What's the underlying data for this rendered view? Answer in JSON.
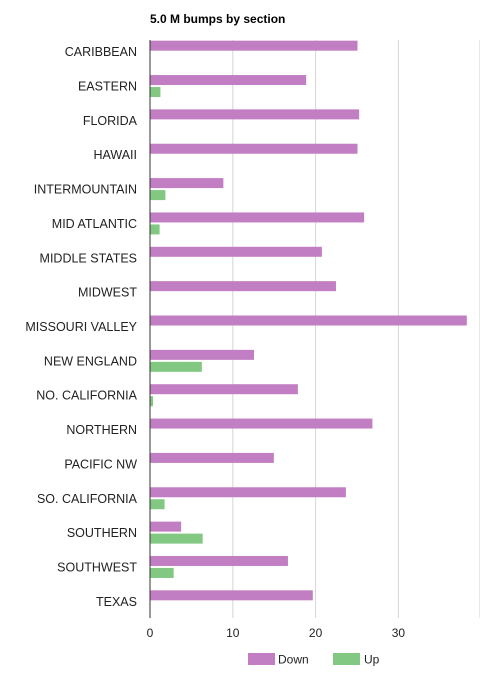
{
  "chart_data": {
    "type": "bar",
    "orientation": "horizontal",
    "title": "5.0 M bumps by section",
    "categories": [
      "CARIBBEAN",
      "EASTERN",
      "FLORIDA",
      "HAWAII",
      "INTERMOUNTAIN",
      "MID ATLANTIC",
      "MIDDLE STATES",
      "MIDWEST",
      "MISSOURI VALLEY",
      "NEW ENGLAND",
      "NO. CALIFORNIA",
      "NORTHERN",
      "PACIFIC NW",
      "SO. CALIFORNIA",
      "SOUTHERN",
      "SOUTHWEST",
      "TEXAS"
    ],
    "series": [
      {
        "name": "Down",
        "color": "#c27ec2",
        "values": [
          25,
          18.8,
          25.2,
          25,
          8.8,
          25.8,
          20.7,
          22.4,
          38.2,
          12.5,
          17.8,
          26.8,
          14.9,
          23.6,
          3.7,
          16.6,
          19.6
        ]
      },
      {
        "name": "Up",
        "color": "#82c882",
        "values": [
          0,
          1.2,
          0,
          0,
          1.8,
          1.1,
          0,
          0,
          0,
          6.2,
          0.3,
          0,
          0,
          1.7,
          6.3,
          2.8,
          0
        ]
      }
    ],
    "xticks": [
      0,
      10,
      20,
      30
    ],
    "xlim": [
      0,
      40
    ],
    "grid": true,
    "legend_position": "bottom"
  }
}
